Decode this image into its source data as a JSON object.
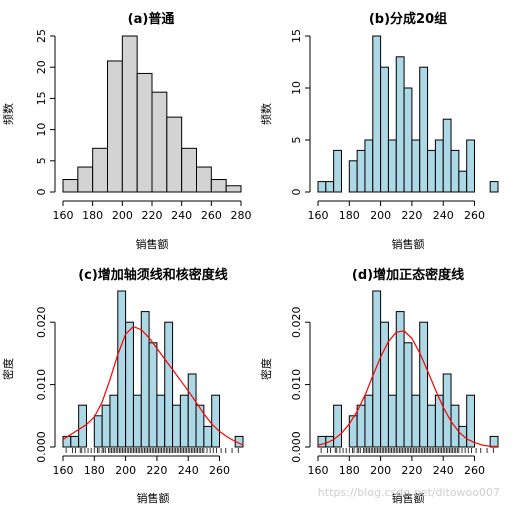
{
  "watermark": "https://blog.csdn.net/ditowoo007",
  "chart_data": [
    {
      "type": "bar",
      "variant": "histogram",
      "title": "(a)普通",
      "xlabel": "销售额",
      "ylabel": "频数",
      "xlim": [
        160,
        280
      ],
      "ylim": [
        0,
        25
      ],
      "x_ticks": [
        "160",
        "180",
        "200",
        "220",
        "240",
        "260",
        "280"
      ],
      "y_ticks": [
        "0",
        "5",
        "10",
        "15",
        "20",
        "25"
      ],
      "bin_width": 10,
      "bin_starts": [
        160,
        170,
        180,
        190,
        200,
        210,
        220,
        230,
        240,
        250,
        260,
        270
      ],
      "values": [
        2,
        4,
        7,
        21,
        25,
        19,
        16,
        12,
        7,
        4,
        2,
        1
      ],
      "bar_color": "#d3d3d3",
      "grid": false
    },
    {
      "type": "bar",
      "variant": "histogram",
      "title": "(b)分成20组",
      "xlabel": "销售额",
      "ylabel": "频数",
      "xlim": [
        160,
        275
      ],
      "ylim": [
        0,
        15
      ],
      "x_ticks": [
        "160",
        "180",
        "200",
        "220",
        "240",
        "260"
      ],
      "y_ticks": [
        "0",
        "5",
        "10",
        "15"
      ],
      "bin_width": 5,
      "bin_starts": [
        160,
        165,
        170,
        175,
        180,
        185,
        190,
        195,
        200,
        205,
        210,
        215,
        220,
        225,
        230,
        235,
        240,
        245,
        250,
        255,
        260,
        265,
        270
      ],
      "values": [
        1,
        1,
        4,
        0,
        3,
        4,
        5,
        15,
        12,
        5,
        13,
        10,
        5,
        12,
        4,
        5,
        7,
        4,
        2,
        5,
        0,
        0,
        1
      ],
      "bar_color": "#add8e6",
      "grid": false
    },
    {
      "type": "bar",
      "variant": "histogram",
      "title": "(c)增加轴须线和核密度线",
      "xlabel": "销售额",
      "ylabel": "密度",
      "xlim": [
        160,
        275
      ],
      "ylim": [
        0,
        0.025
      ],
      "x_ticks": [
        "160",
        "180",
        "200",
        "220",
        "240",
        "260"
      ],
      "y_ticks": [
        "0.000",
        "0.010",
        "0.020"
      ],
      "y_tick_values": [
        0,
        0.01,
        0.02
      ],
      "bin_width": 5,
      "bin_starts": [
        160,
        165,
        170,
        175,
        180,
        185,
        190,
        195,
        200,
        205,
        210,
        215,
        220,
        225,
        230,
        235,
        240,
        245,
        250,
        255,
        260,
        265,
        270
      ],
      "values": [
        0.0017,
        0.0017,
        0.0067,
        0.0,
        0.005,
        0.0067,
        0.0083,
        0.025,
        0.02,
        0.0083,
        0.0217,
        0.0167,
        0.0083,
        0.02,
        0.0067,
        0.0083,
        0.0117,
        0.0067,
        0.0033,
        0.0083,
        0.0,
        0.0,
        0.0017
      ],
      "bar_color": "#add8e6",
      "density_curve": {
        "type": "line",
        "name": "",
        "color": "#ff0000",
        "x": [
          160,
          165,
          170,
          175,
          180,
          185,
          190,
          195,
          200,
          205,
          210,
          215,
          220,
          225,
          230,
          235,
          240,
          245,
          250,
          255,
          260,
          265,
          270,
          275
        ],
        "y": [
          0.0012,
          0.002,
          0.0028,
          0.0036,
          0.0048,
          0.0072,
          0.0108,
          0.0148,
          0.0181,
          0.0193,
          0.0188,
          0.0175,
          0.0158,
          0.0141,
          0.0124,
          0.0107,
          0.009,
          0.0072,
          0.0053,
          0.0037,
          0.0025,
          0.0016,
          0.0009,
          0.0003
        ]
      },
      "rug": [
        162,
        166,
        168,
        171,
        172,
        174,
        176,
        178,
        180,
        182,
        183,
        185,
        186,
        187,
        189,
        190,
        191,
        192,
        193,
        194,
        195,
        196,
        197,
        198,
        199,
        200,
        201,
        202,
        203,
        204,
        205,
        206,
        207,
        208,
        209,
        210,
        211,
        212,
        213,
        214,
        215,
        216,
        217,
        218,
        219,
        220,
        221,
        222,
        223,
        224,
        225,
        226,
        227,
        228,
        229,
        230,
        231,
        232,
        233,
        234,
        235,
        236,
        237,
        238,
        239,
        240,
        241,
        242,
        243,
        244,
        245,
        246,
        247,
        248,
        249,
        250,
        252,
        254,
        256,
        258,
        261,
        264,
        268,
        272
      ],
      "grid": false
    },
    {
      "type": "bar",
      "variant": "histogram",
      "title": "(d)增加正态密度线",
      "xlabel": "销售额",
      "ylabel": "密度",
      "xlim": [
        160,
        275
      ],
      "ylim": [
        0,
        0.025
      ],
      "x_ticks": [
        "160",
        "180",
        "200",
        "220",
        "240",
        "260"
      ],
      "y_ticks": [
        "0.000",
        "0.010",
        "0.020"
      ],
      "y_tick_values": [
        0,
        0.01,
        0.02
      ],
      "bin_width": 5,
      "bin_starts": [
        160,
        165,
        170,
        175,
        180,
        185,
        190,
        195,
        200,
        205,
        210,
        215,
        220,
        225,
        230,
        235,
        240,
        245,
        250,
        255,
        260,
        265,
        270
      ],
      "values": [
        0.0017,
        0.0017,
        0.0067,
        0.0,
        0.005,
        0.0067,
        0.0083,
        0.025,
        0.02,
        0.0083,
        0.0217,
        0.0167,
        0.0083,
        0.02,
        0.0067,
        0.0083,
        0.0117,
        0.0067,
        0.0033,
        0.0083,
        0.0,
        0.0,
        0.0017
      ],
      "bar_color": "#add8e6",
      "density_curve": {
        "type": "line",
        "name": "",
        "color": "#ff0000",
        "x": [
          160,
          165,
          170,
          175,
          180,
          185,
          190,
          195,
          200,
          205,
          210,
          215,
          220,
          225,
          230,
          235,
          240,
          245,
          250,
          255,
          260,
          265,
          270,
          275
        ],
        "y": [
          0.0003,
          0.0006,
          0.0012,
          0.0022,
          0.0037,
          0.0057,
          0.0083,
          0.0114,
          0.0144,
          0.0169,
          0.0184,
          0.0186,
          0.0174,
          0.0151,
          0.0122,
          0.0092,
          0.0064,
          0.0041,
          0.0024,
          0.0013,
          0.0007,
          0.0003,
          0.0001,
          0.0001
        ]
      },
      "rug": [
        162,
        166,
        168,
        171,
        172,
        174,
        176,
        178,
        180,
        182,
        183,
        185,
        186,
        187,
        189,
        190,
        191,
        192,
        193,
        194,
        195,
        196,
        197,
        198,
        199,
        200,
        201,
        202,
        203,
        204,
        205,
        206,
        207,
        208,
        209,
        210,
        211,
        212,
        213,
        214,
        215,
        216,
        217,
        218,
        219,
        220,
        221,
        222,
        223,
        224,
        225,
        226,
        227,
        228,
        229,
        230,
        231,
        232,
        233,
        234,
        235,
        236,
        237,
        238,
        239,
        240,
        241,
        242,
        243,
        244,
        245,
        246,
        247,
        248,
        249,
        250,
        252,
        254,
        256,
        258,
        261,
        264,
        268,
        272
      ],
      "grid": false
    }
  ]
}
